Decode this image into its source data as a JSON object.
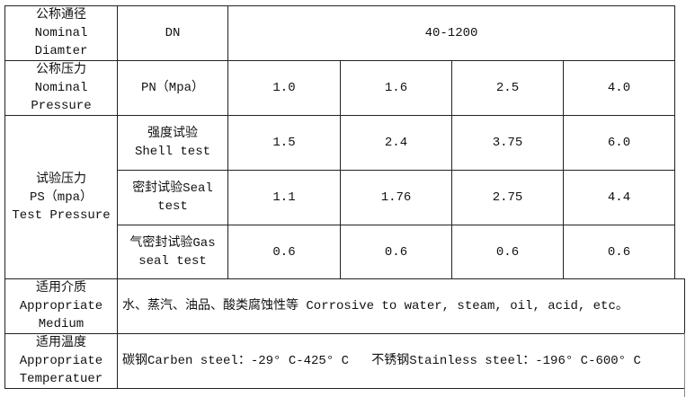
{
  "rows": {
    "nominal_diameter": {
      "label_cn": "公称通径",
      "label_en1": "Nominal",
      "label_en2": "Diamter",
      "param": "DN",
      "value": "40-1200"
    },
    "nominal_pressure": {
      "label_cn": "公称压力",
      "label_en1": "Nominal",
      "label_en2": "Pressure",
      "param": "PN（Mpa）",
      "values": [
        "1.0",
        "1.6",
        "2.5",
        "4.0"
      ]
    },
    "test_pressure": {
      "label_cn": "试验压力",
      "label_unit": "PS（mpa）",
      "label_en": "Test Pressure",
      "shell": {
        "cn": "强度试验",
        "en": "Shell test",
        "values": [
          "1.5",
          "2.4",
          "3.75",
          "6.0"
        ]
      },
      "seal": {
        "cn": "密封试验Seal",
        "en": "test",
        "values": [
          "1.1",
          "1.76",
          "2.75",
          "4.4"
        ]
      },
      "gas": {
        "cn": "气密封试验Gas",
        "en": "seal test",
        "values": [
          "0.6",
          "0.6",
          "0.6",
          "0.6"
        ]
      }
    },
    "medium": {
      "label_cn": "适用介质",
      "label_en1": "Appropriate",
      "label_en2": "Medium",
      "value": "水、蒸汽、油品、酸类腐蚀性等 Corrosive to water, steam, oil, acid, etc。"
    },
    "temperature": {
      "label_cn": "适用温度",
      "label_en1": "Appropriate",
      "label_en2": "Temperatuer",
      "value": "碳钢Carben steel：-29° C-425° C   不锈钢Stainless steel：-196° C-600° C"
    }
  }
}
